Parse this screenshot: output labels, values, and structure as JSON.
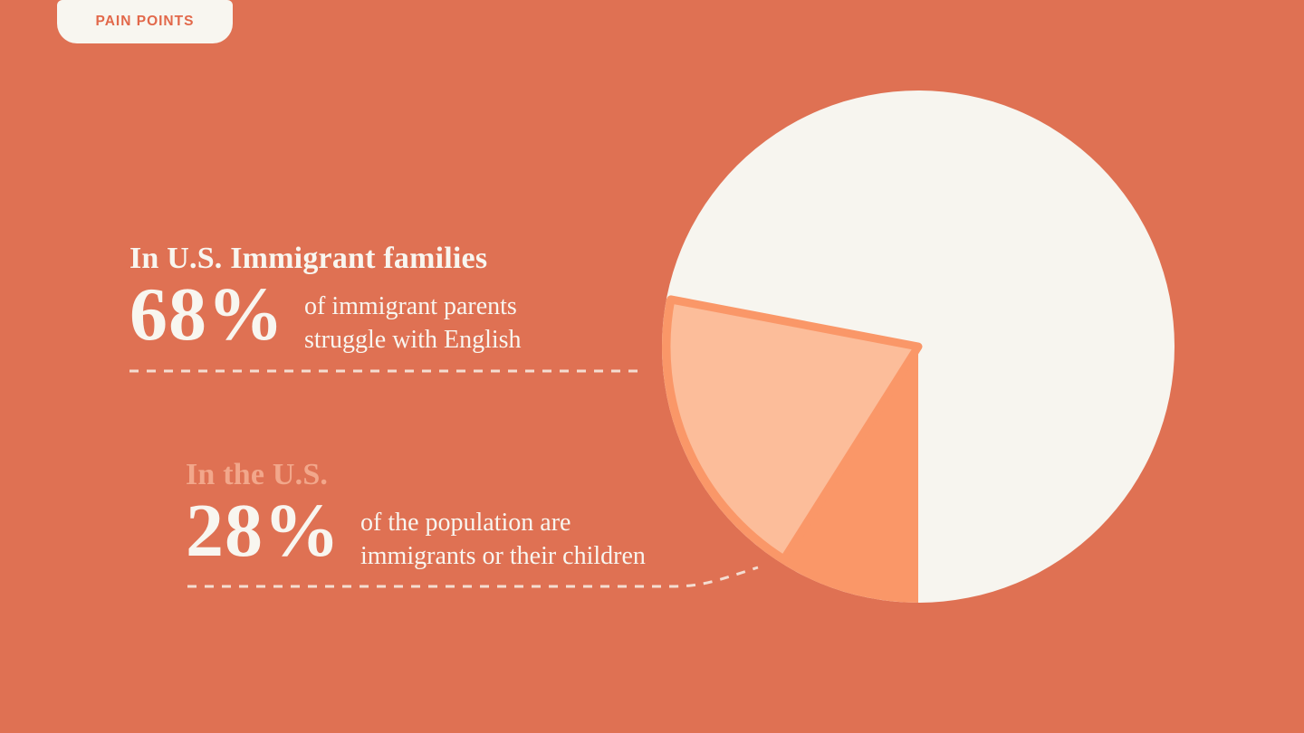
{
  "badge": {
    "label": "PAIN POINTS"
  },
  "stats": [
    {
      "title": "In U.S. Immigrant families",
      "value": "68%",
      "desc_lines": [
        "of immigrant parents",
        "struggle with English"
      ]
    },
    {
      "title": "In the U.S.",
      "value": "28%",
      "desc_lines": [
        "of the population are",
        "immigrants or their children"
      ]
    }
  ],
  "chart_data": {
    "type": "pie",
    "title": "",
    "legend_position": "none",
    "data_labels": "none",
    "series": [
      {
        "name": "U.S. population who are immigrants or their children",
        "value": 28,
        "color": "#FA9768"
      },
      {
        "name": "Rest of U.S. population",
        "value": 72,
        "color": "#F7F5EF"
      }
    ],
    "sub_slice": {
      "name": "Immigrant parents who struggle with English",
      "percent_of_slice": 68,
      "color": "#FCBD9A",
      "stroke_color": "#FA9768"
    },
    "orientation_note": "28% slice spans lower-left, ending pointing straight down"
  },
  "colors": {
    "background": "#DF7153",
    "cream": "#F8F6F0",
    "slice_orange": "#FA9768",
    "subslice_peach": "#FCBD9A",
    "peach_heading": "#F2A78B",
    "badge_text": "#E2684A"
  }
}
